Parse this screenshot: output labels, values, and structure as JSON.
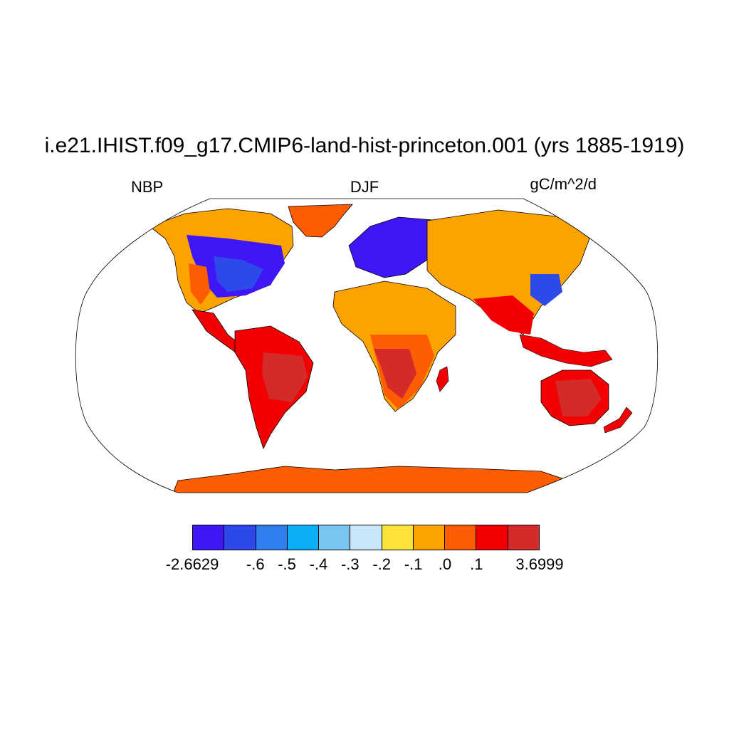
{
  "title": "i.e21.IHIST.f09_g17.CMIP6-land-hist-princeton.001 (yrs 1885-1919)",
  "left_label": "NBP",
  "center_label": "DJF",
  "right_label": "gC/m^2/d",
  "colorbar": {
    "colors": [
      "#3f16f5",
      "#2e49ea",
      "#2f7ff0",
      "#0aaff8",
      "#78c6ef",
      "#c9e6f8",
      "#fde23a",
      "#fda300",
      "#fe5c00",
      "#f30003",
      "#d32a2a"
    ],
    "labels": [
      "-2.6629",
      "-.6",
      "-.5",
      "-.4",
      "-.3",
      "-.2",
      "-.1",
      ".0",
      ".1",
      "3.6999"
    ]
  },
  "map": {
    "projection": "Robinson",
    "ocean_color": "#ffffff",
    "coastline_color": "#000000"
  }
}
